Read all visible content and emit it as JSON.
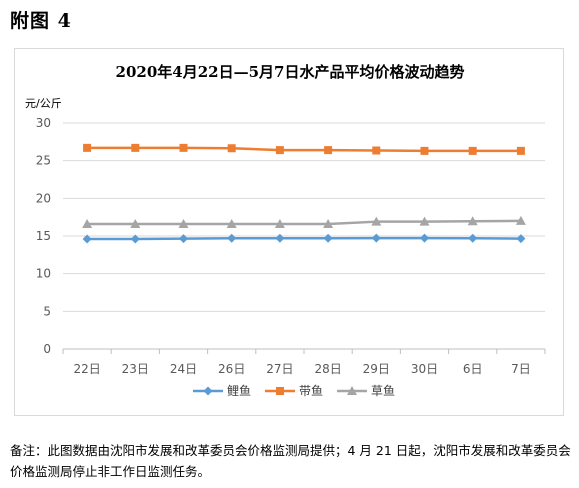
{
  "figure_label": "附图 4",
  "note": "备注：此图数据由沈阳市发展和改革委员会价格监测局提供；4 月 21 日起，沈阳市发展和改革委员会价格监测局停止非工作日监测任务。",
  "chart_data": {
    "type": "line",
    "title": "2020年4月22日—5月7日水产品平均价格波动趋势",
    "ylabel": "元/公斤",
    "xlabel": "",
    "categories": [
      "22日",
      "23日",
      "24日",
      "26日",
      "27日",
      "28日",
      "29日",
      "30日",
      "6日",
      "7日"
    ],
    "ylim": [
      0,
      30
    ],
    "yticks": [
      0,
      5,
      10,
      15,
      20,
      25,
      30
    ],
    "grid": true,
    "legend": "bottom",
    "series": [
      {
        "name": "鲤鱼",
        "color": "#5b9bd5",
        "marker": "diamond",
        "values": [
          14.6,
          14.6,
          14.65,
          14.7,
          14.7,
          14.7,
          14.72,
          14.72,
          14.7,
          14.65
        ]
      },
      {
        "name": "带鱼",
        "color": "#ed7d31",
        "marker": "square",
        "values": [
          26.7,
          26.7,
          26.7,
          26.65,
          26.4,
          26.4,
          26.35,
          26.3,
          26.3,
          26.3
        ]
      },
      {
        "name": "草鱼",
        "color": "#a5a5a5",
        "marker": "triangle",
        "values": [
          16.6,
          16.6,
          16.6,
          16.6,
          16.6,
          16.6,
          16.9,
          16.9,
          16.95,
          17.0
        ]
      }
    ]
  }
}
